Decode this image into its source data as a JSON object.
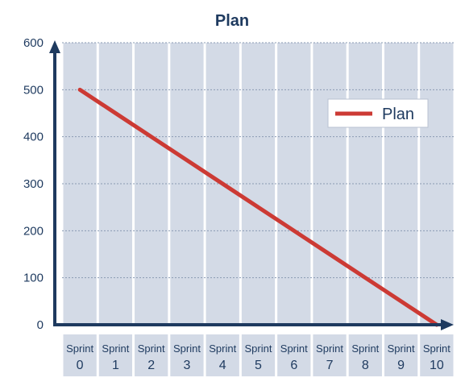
{
  "chart_data": {
    "type": "line",
    "title": "Plan",
    "xlabel": "",
    "ylabel": "",
    "categories": [
      [
        "Sprint",
        "0"
      ],
      [
        "Sprint",
        "1"
      ],
      [
        "Sprint",
        "2"
      ],
      [
        "Sprint",
        "3"
      ],
      [
        "Sprint",
        "4"
      ],
      [
        "Sprint",
        "5"
      ],
      [
        "Sprint",
        "6"
      ],
      [
        "Sprint",
        "7"
      ],
      [
        "Sprint",
        "8"
      ],
      [
        "Sprint",
        "9"
      ],
      [
        "Sprint",
        "10"
      ]
    ],
    "series": [
      {
        "name": "Plan",
        "values": [
          500,
          450,
          400,
          350,
          300,
          250,
          200,
          150,
          100,
          50,
          0
        ],
        "color": "#cc3a34"
      }
    ],
    "ylim": [
      0,
      600
    ],
    "yticks": [
      0,
      100,
      200,
      300,
      400,
      500,
      600
    ],
    "grid": true,
    "legend_position": "top-right",
    "colors": {
      "plot_band": "#d3dae6",
      "axis": "#1e3a5f",
      "text": "#1e3a5f",
      "grid": "#8a9bb3"
    }
  }
}
